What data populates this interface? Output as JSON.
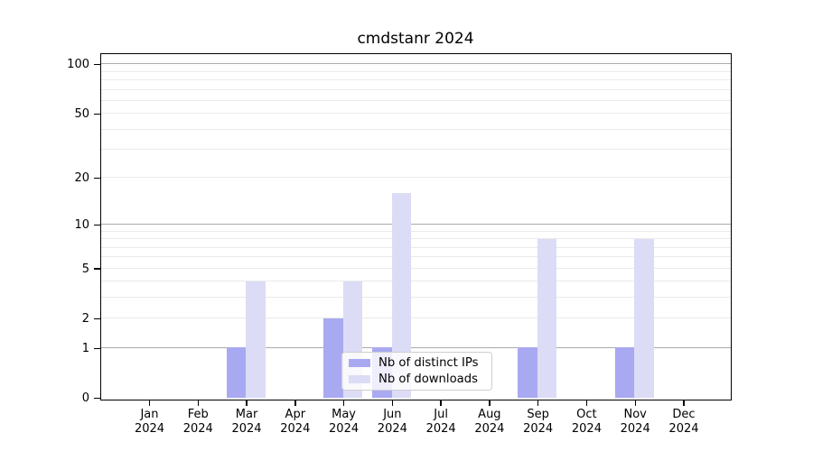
{
  "title": "cmdstanr 2024",
  "legend": {
    "items": [
      {
        "label": "Nb of distinct IPs",
        "color": "#a9a9f1"
      },
      {
        "label": "Nb of downloads",
        "color": "#dcdcf6"
      }
    ]
  },
  "axes": {
    "y_tick_labels": [
      "0",
      "1",
      "2",
      "5",
      "10",
      "20",
      "50",
      "100"
    ],
    "x_ticks": [
      {
        "month": "Jan",
        "year": "2024"
      },
      {
        "month": "Feb",
        "year": "2024"
      },
      {
        "month": "Mar",
        "year": "2024"
      },
      {
        "month": "Apr",
        "year": "2024"
      },
      {
        "month": "May",
        "year": "2024"
      },
      {
        "month": "Jun",
        "year": "2024"
      },
      {
        "month": "Jul",
        "year": "2024"
      },
      {
        "month": "Aug",
        "year": "2024"
      },
      {
        "month": "Sep",
        "year": "2024"
      },
      {
        "month": "Oct",
        "year": "2024"
      },
      {
        "month": "Nov",
        "year": "2024"
      },
      {
        "month": "Dec",
        "year": "2024"
      }
    ]
  },
  "chart_data": {
    "type": "bar",
    "title": "cmdstanr 2024",
    "categories": [
      "Jan 2024",
      "Feb 2024",
      "Mar 2024",
      "Apr 2024",
      "May 2024",
      "Jun 2024",
      "Jul 2024",
      "Aug 2024",
      "Sep 2024",
      "Oct 2024",
      "Nov 2024",
      "Dec 2024"
    ],
    "series": [
      {
        "name": "Nb of distinct IPs",
        "color": "#a9a9f1",
        "values": [
          0,
          0,
          1,
          0,
          2,
          1,
          0,
          0,
          1,
          0,
          1,
          0
        ]
      },
      {
        "name": "Nb of downloads",
        "color": "#dcdcf6",
        "values": [
          0,
          0,
          4,
          0,
          4,
          16,
          0,
          0,
          8,
          0,
          8,
          0
        ]
      }
    ],
    "yscale": "log1p",
    "ylim": [
      0,
      115
    ],
    "ytick_values": [
      0,
      1,
      2,
      5,
      10,
      20,
      50,
      100
    ],
    "grid": {
      "major": [
        1,
        10,
        100
      ],
      "minor": [
        2,
        3,
        4,
        5,
        6,
        7,
        8,
        9,
        20,
        30,
        40,
        50,
        60,
        70,
        80,
        90
      ],
      "major_color": "#ababab",
      "minor_color": "#eaeaea"
    },
    "legend_position": "lower center",
    "xlabel": "",
    "ylabel": ""
  }
}
